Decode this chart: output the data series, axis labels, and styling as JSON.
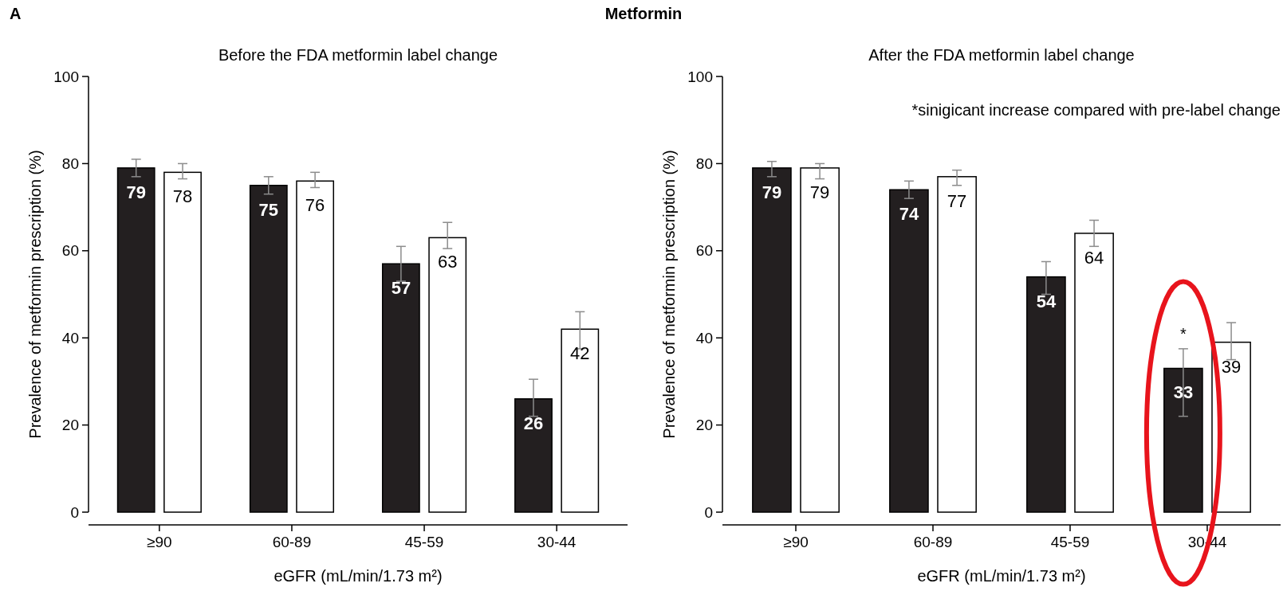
{
  "chart_data": [
    {
      "type": "bar",
      "title": "Before the FDA metformin label change",
      "xlabel": "eGFR (mL/min/1.73 m²)",
      "ylabel": "Prevalence of metformin prescription (%)",
      "categories": [
        "≥90",
        "60-89",
        "45-59",
        "30-44"
      ],
      "ylim": [
        0,
        100
      ],
      "yticks": [
        0,
        20,
        40,
        60,
        80,
        100
      ],
      "data_labels": true,
      "annotations": [
        "A",
        "Metformin"
      ],
      "series": [
        {
          "color": "#231f20",
          "values": [
            79,
            75,
            57,
            26
          ],
          "errors": [
            [
              77,
              81
            ],
            [
              73,
              77
            ],
            [
              53,
              61
            ],
            [
              22,
              30.5
            ]
          ]
        },
        {
          "color": "#ffffff",
          "values": [
            78,
            76,
            63,
            42
          ],
          "errors": [
            [
              76.5,
              80
            ],
            [
              74.5,
              78
            ],
            [
              60.5,
              66.5
            ],
            [
              37.5,
              46
            ]
          ]
        }
      ]
    },
    {
      "type": "bar",
      "title": "After the FDA metformin label change",
      "xlabel": "eGFR (mL/min/1.73 m²)",
      "ylabel": "Prevalence of metformin prescription (%)",
      "categories": [
        "≥90",
        "60-89",
        "45-59",
        "30-44"
      ],
      "ylim": [
        0,
        100
      ],
      "yticks": [
        0,
        20,
        40,
        60,
        80,
        100
      ],
      "data_labels": true,
      "annotations": [
        "*sinigicant increase compared with pre-label change",
        "*"
      ],
      "series": [
        {
          "color": "#231f20",
          "values": [
            79,
            74,
            54,
            33
          ],
          "errors": [
            [
              77,
              80.5
            ],
            [
              72,
              76
            ],
            [
              50,
              57.5
            ],
            [
              22,
              37.5
            ]
          ]
        },
        {
          "color": "#ffffff",
          "values": [
            79,
            77,
            64,
            39
          ],
          "errors": [
            [
              76.5,
              80
            ],
            [
              75,
              78.5
            ],
            [
              61,
              67
            ],
            [
              35,
              43.5
            ]
          ]
        }
      ]
    }
  ]
}
